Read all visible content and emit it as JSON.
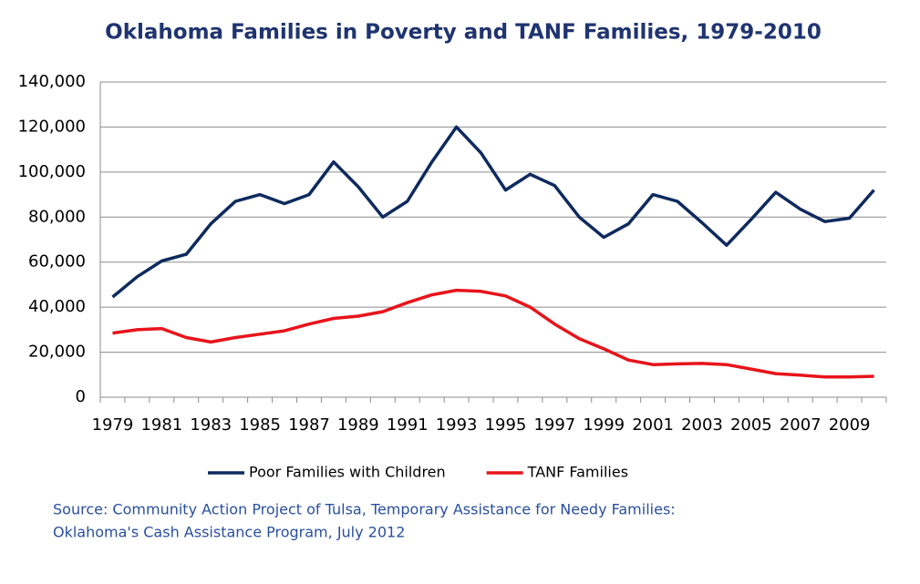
{
  "chart_data": {
    "type": "line",
    "title": "Oklahoma Families in Poverty and TANF Families, 1979-2010",
    "categories": [
      "1979",
      null,
      "1981",
      null,
      "1983",
      null,
      "1985",
      null,
      "1987",
      null,
      "1989",
      null,
      "1991",
      null,
      "1993",
      null,
      "1995",
      null,
      "1997",
      null,
      "1999",
      null,
      "2001",
      null,
      "2003",
      null,
      "2005",
      null,
      "2007",
      null,
      "2009",
      null
    ],
    "series": [
      {
        "name": "Poor Families with Children",
        "color": "#0e2a5e",
        "values": [
          44500,
          53500,
          60500,
          63500,
          77000,
          87000,
          90000,
          86000,
          90000,
          104500,
          93500,
          80000,
          87000,
          104500,
          120000,
          108500,
          92000,
          99000,
          94000,
          80000,
          71000,
          77000,
          90000,
          87000,
          77500,
          67500,
          79000,
          91000,
          83500,
          78000,
          79500,
          92000
        ]
      },
      {
        "name": "TANF Families",
        "color": "#e8141b",
        "values": [
          28500,
          30000,
          30500,
          26500,
          24500,
          26500,
          28000,
          29500,
          32500,
          35000,
          36000,
          38000,
          42000,
          45500,
          47500,
          47000,
          45000,
          40000,
          32500,
          26000,
          21500,
          16500,
          14500,
          14800,
          15000,
          14500,
          12500,
          10500,
          9800,
          9000,
          9000,
          9300
        ]
      }
    ],
    "ylim": [
      0,
      140000
    ],
    "yticks": [
      0,
      {
        "value": 20000,
        "label": "20,000"
      },
      {
        "value": 40000,
        "label": "40,000"
      },
      {
        "value": 60000,
        "label": "60,000"
      },
      {
        "value": 80000,
        "label": "80,000"
      },
      {
        "value": 100000,
        "label": "100,000"
      },
      {
        "value": 120000,
        "label": "120,000"
      },
      {
        "value": 140000,
        "label": "140,000"
      }
    ],
    "grid": true,
    "legend": "bottom",
    "source": [
      "Source: Community Action Project of Tulsa, Temporary Assistance for Needy Families:",
      "Oklahoma's Cash Assistance Program, July 2012"
    ]
  }
}
